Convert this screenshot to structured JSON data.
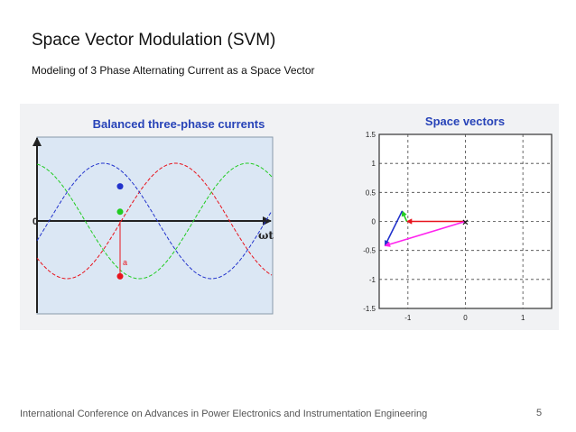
{
  "slide": {
    "title": "Space Vector Modulation (SVM)",
    "subtitle": "Modeling of 3 Phase Alternating Current as a Space Vector",
    "footer": "International Conference  on Advances in Power Electronics and Instrumentation Engineering",
    "page_number": "5"
  },
  "colors": {
    "phase_a": "#e8141d",
    "phase_b": "#22cc22",
    "phase_c": "#2233cc",
    "resultant": "#ff22ee",
    "title_blue": "#2743b8"
  },
  "chart_data": [
    {
      "type": "line",
      "title": "Balanced three-phase currents",
      "xlabel": "ωt",
      "x_tick_labels": [
        "0"
      ],
      "annotation": "a",
      "series": [
        {
          "color": "#e8141d",
          "amplitude": 1,
          "phase_shift_deg": 0
        },
        {
          "color": "#22cc22",
          "amplitude": 1,
          "phase_shift_deg": -120
        },
        {
          "color": "#2233cc",
          "amplitude": 1,
          "phase_shift_deg": 120
        }
      ],
      "marker_angle_deg": 268,
      "markers": [
        {
          "color": "#2233cc",
          "value": 0.6
        },
        {
          "color": "#22cc22",
          "value": 0.16
        },
        {
          "color": "#e8141d",
          "value": -0.96
        }
      ]
    },
    {
      "type": "scatter",
      "title": "Space vectors",
      "xlim": [
        -1.5,
        1.5
      ],
      "ylim": [
        -1.5,
        1.5
      ],
      "x_ticks": [
        -1,
        0,
        1
      ],
      "y_ticks": [
        1.5,
        1,
        0.5,
        0,
        -0.5,
        -1,
        -1.5
      ],
      "x_tick_labels": [
        "-1",
        "0",
        "1"
      ],
      "y_tick_labels": [
        "1.5",
        "1",
        "0.5",
        "0",
        "-0.5",
        "-1",
        "-1.5"
      ],
      "grid": true,
      "origin_marker": "×",
      "vectors": [
        {
          "color": "#e8141d",
          "from": [
            0,
            0
          ],
          "to": [
            -1.02,
            0
          ]
        },
        {
          "color": "#22cc22",
          "from": [
            -1.02,
            0
          ],
          "to": [
            -1.1,
            0.18
          ]
        },
        {
          "color": "#2233cc",
          "from": [
            -1.1,
            0.18
          ],
          "to": [
            -1.4,
            -0.42
          ]
        },
        {
          "color": "#ff22ee",
          "from": [
            0,
            0
          ],
          "to": [
            -1.4,
            -0.42
          ]
        }
      ]
    }
  ]
}
